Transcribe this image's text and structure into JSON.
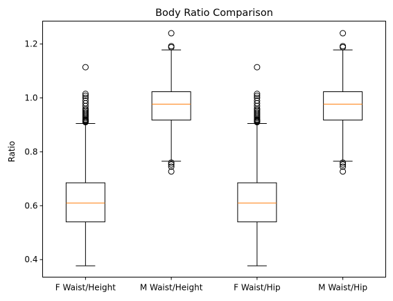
{
  "chart_data": {
    "type": "boxplot",
    "title": "Body Ratio Comparison",
    "xlabel": "",
    "ylabel": "Ratio",
    "ylim": [
      0.335,
      1.285
    ],
    "yticks": [
      0.4,
      0.6,
      0.8,
      1.0,
      1.2
    ],
    "ytick_labels": [
      "0.4",
      "0.6",
      "0.8",
      "1.0",
      "1.2"
    ],
    "grid": false,
    "categories": [
      "F Waist/Height",
      "M Waist/Height",
      "F Waist/Hip",
      "M Waist/Hip"
    ],
    "boxes": [
      {
        "whisker_low": 0.377,
        "q1": 0.54,
        "median": 0.61,
        "q3": 0.685,
        "whisker_high": 0.905,
        "outliers": [
          0.91,
          0.912,
          0.915,
          0.918,
          0.92,
          0.925,
          0.93,
          0.935,
          0.94,
          0.945,
          0.95,
          0.955,
          0.96,
          0.97,
          0.98,
          0.99,
          1.0,
          1.008,
          1.015,
          1.114
        ]
      },
      {
        "whisker_low": 0.765,
        "q1": 0.918,
        "median": 0.977,
        "q3": 1.023,
        "whisker_high": 1.178,
        "outliers": [
          0.727,
          0.745,
          0.753,
          0.76,
          1.188,
          1.192,
          1.24
        ]
      },
      {
        "whisker_low": 0.377,
        "q1": 0.54,
        "median": 0.61,
        "q3": 0.685,
        "whisker_high": 0.905,
        "outliers": [
          0.91,
          0.912,
          0.915,
          0.918,
          0.92,
          0.925,
          0.93,
          0.935,
          0.94,
          0.945,
          0.95,
          0.955,
          0.96,
          0.97,
          0.98,
          0.99,
          1.0,
          1.008,
          1.015,
          1.114
        ]
      },
      {
        "whisker_low": 0.765,
        "q1": 0.918,
        "median": 0.977,
        "q3": 1.023,
        "whisker_high": 1.178,
        "outliers": [
          0.727,
          0.745,
          0.753,
          0.76,
          1.188,
          1.192,
          1.24
        ]
      }
    ],
    "colors": {
      "box": "#000000",
      "median": "#ff7f0e",
      "outlier": "#000000",
      "background": "#ffffff"
    }
  }
}
